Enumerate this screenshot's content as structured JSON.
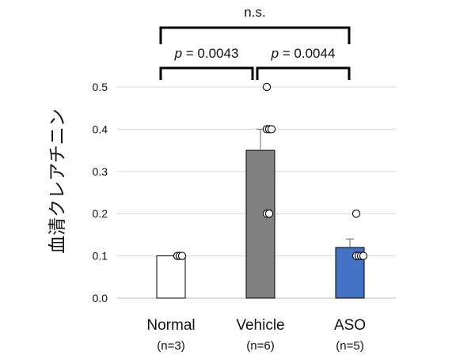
{
  "chart_data": {
    "type": "bar",
    "ylabel": "血清クレアチニン",
    "ylim": [
      0,
      0.5
    ],
    "yticks": [
      "0.0",
      "0.1",
      "0.2",
      "0.3",
      "0.4",
      "0.5"
    ],
    "grid": true,
    "categories": [
      "Normal",
      "Vehicle",
      "ASO"
    ],
    "sample_sizes": [
      "(n=3)",
      "(n=6)",
      "(n=5)"
    ],
    "values": [
      0.1,
      0.35,
      0.12
    ],
    "errors": [
      0.0,
      0.05,
      0.02
    ],
    "points": [
      [
        0.1,
        0.1,
        0.1
      ],
      [
        0.5,
        0.4,
        0.4,
        0.4,
        0.2,
        0.2
      ],
      [
        0.2,
        0.1,
        0.1,
        0.1,
        0.1
      ]
    ],
    "bar_colors": [
      "#ffffff",
      "#808080",
      "#4472c4"
    ],
    "comparisons": [
      {
        "pair": [
          0,
          1
        ],
        "label_prefix": "p",
        "label_value": " = 0.0043"
      },
      {
        "pair": [
          1,
          2
        ],
        "label_prefix": "p",
        "label_value": " = 0.0044"
      },
      {
        "pair": [
          0,
          2
        ],
        "label_prefix": "",
        "label_value": "n.s."
      }
    ]
  }
}
